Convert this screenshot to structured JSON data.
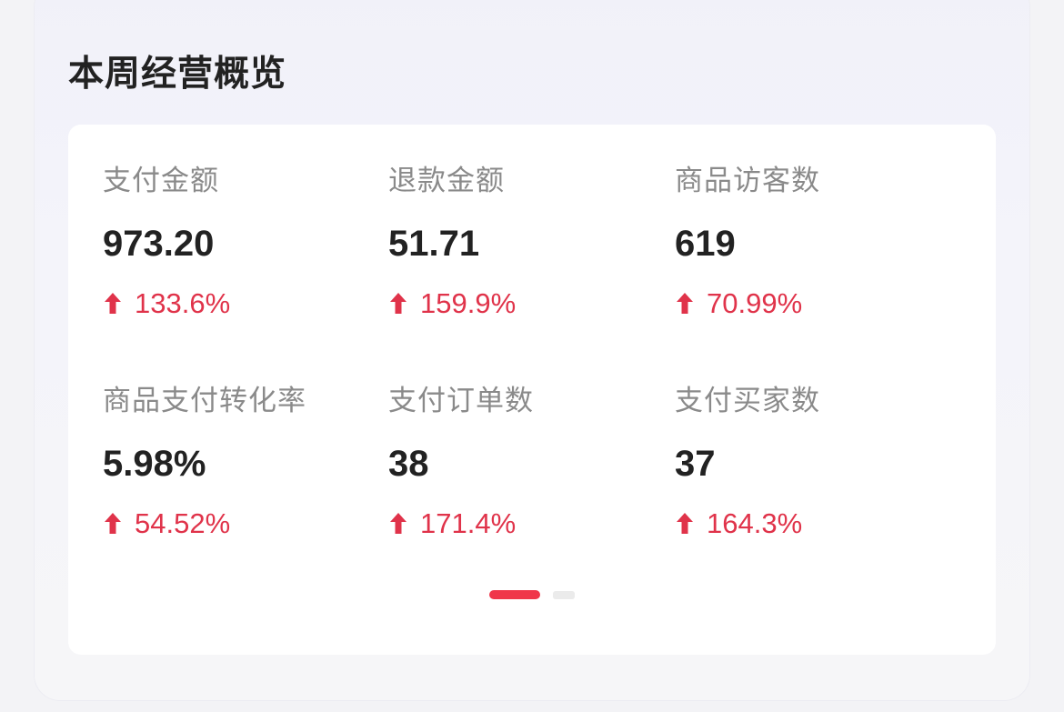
{
  "title": "本周经营概览",
  "colors": {
    "accent": "#f0364a",
    "change_up": "#e0334a"
  },
  "metrics": [
    {
      "label": "支付金额",
      "value": "973.20",
      "change": "133.6%",
      "trend": "arrow-up-icon"
    },
    {
      "label": "退款金额",
      "value": "51.71",
      "change": "159.9%",
      "trend": "arrow-up-icon"
    },
    {
      "label": "商品访客数",
      "value": "619",
      "change": "70.99%",
      "trend": "arrow-up-icon"
    },
    {
      "label": "商品支付转化率",
      "value": "5.98%",
      "change": "54.52%",
      "trend": "arrow-up-icon"
    },
    {
      "label": "支付订单数",
      "value": "38",
      "change": "171.4%",
      "trend": "arrow-up-icon"
    },
    {
      "label": "支付买家数",
      "value": "37",
      "change": "164.3%",
      "trend": "arrow-up-icon"
    }
  ],
  "pagination": {
    "pages": 2,
    "current": 1
  }
}
